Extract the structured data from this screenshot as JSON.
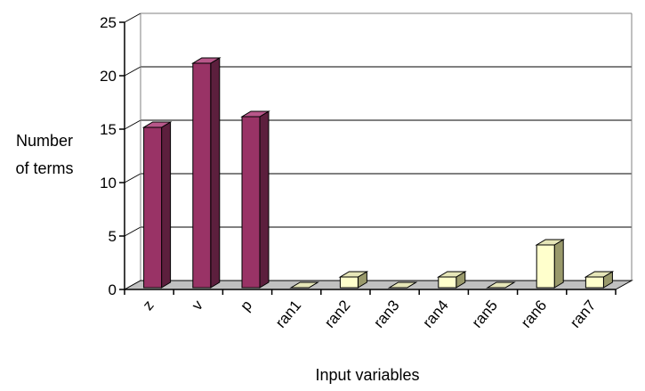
{
  "chart_data": {
    "type": "bar",
    "title": "",
    "xlabel": "Input variables",
    "ylabel_lines": [
      "Number",
      "of terms"
    ],
    "categories": [
      "z",
      "v",
      "p",
      "ran1",
      "ran2",
      "ran3",
      "ran4",
      "ran5",
      "ran6",
      "ran7"
    ],
    "values": [
      15,
      21,
      16,
      0,
      1,
      0,
      1,
      0,
      4,
      1
    ],
    "ylim": [
      0,
      25
    ],
    "yticks": [
      0,
      5,
      10,
      15,
      20,
      25
    ],
    "grid": true,
    "legend": "none",
    "colors": {
      "real_front": "#993366",
      "real_side": "#5c1f3d",
      "real_top": "#b8578a",
      "random_front": "#ffffcc",
      "random_side": "#99996b",
      "random_top": "#e6e6b8",
      "grid": "#000000",
      "floor": "#c0c0c0"
    }
  }
}
